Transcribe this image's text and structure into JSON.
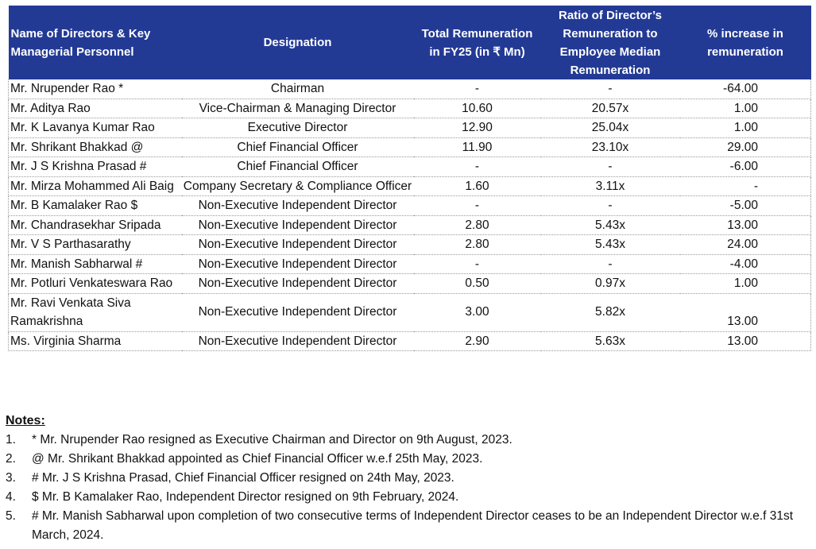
{
  "table": {
    "header_color": "#233a95",
    "headers": [
      "Name of Directors & Key Managerial Personnel",
      "Designation",
      "Total Remuneration in FY25 (in ₹ Mn)",
      "Ratio of Director’s Remuneration to Employee Median Remuneration",
      "% increase in remuneration"
    ],
    "rows": [
      {
        "name": "Mr. Nrupender Rao *",
        "designation": "Chairman",
        "total": "-",
        "ratio": "-",
        "pct": "-64.00"
      },
      {
        "name": "Mr. Aditya Rao",
        "designation": "Vice-Chairman & Managing Director",
        "total": "10.60",
        "ratio": "20.57x",
        "pct": "1.00"
      },
      {
        "name": "Mr. K Lavanya Kumar Rao",
        "designation": "Executive Director",
        "total": "12.90",
        "ratio": "25.04x",
        "pct": "1.00"
      },
      {
        "name": "Mr. Shrikant Bhakkad @",
        "designation": "Chief Financial Officer",
        "total": "11.90",
        "ratio": "23.10x",
        "pct": "29.00"
      },
      {
        "name": "Mr. J S Krishna Prasad #",
        "designation": "Chief Financial Officer",
        "total": "-",
        "ratio": "-",
        "pct": "-6.00"
      },
      {
        "name": "Mr. Mirza Mohammed Ali Baig",
        "designation": "Company Secretary & Compliance Officer",
        "total": "1.60",
        "ratio": "3.11x",
        "pct": "-"
      },
      {
        "name": "Mr. B Kamalaker Rao $",
        "designation": "Non-Executive Independent Director",
        "total": "-",
        "ratio": "-",
        "pct": "-5.00"
      },
      {
        "name": "Mr. Chandrasekhar Sripada",
        "designation": "Non-Executive Independent Director",
        "total": "2.80",
        "ratio": "5.43x",
        "pct": "13.00"
      },
      {
        "name": "Mr. V S Parthasarathy",
        "designation": "Non-Executive Independent Director",
        "total": "2.80",
        "ratio": "5.43x",
        "pct": "24.00"
      },
      {
        "name": "Mr. Manish Sabharwal #",
        "designation": "Non-Executive Independent Director",
        "total": "-",
        "ratio": "-",
        "pct": "-4.00"
      },
      {
        "name": "Mr. Potluri Venkateswara Rao",
        "designation": "Non-Executive Independent Director",
        "total": "0.50",
        "ratio": "0.97x",
        "pct": "1.00"
      },
      {
        "name": "Mr. Ravi Venkata Siva Ramakrishna",
        "designation": "Non-Executive Independent Director",
        "total": "3.00",
        "ratio": "5.82x",
        "pct": "13.00"
      },
      {
        "name": "Ms. Virginia Sharma",
        "designation": "Non-Executive Independent Director",
        "total": "2.90",
        "ratio": "5.63x",
        "pct": "13.00"
      }
    ]
  },
  "notes": {
    "title": "Notes:",
    "items": [
      {
        "num": "1.",
        "text": "* Mr. Nrupender Rao resigned as Executive Chairman and Director on 9th August, 2023."
      },
      {
        "num": "2.",
        "text": "@ Mr. Shrikant Bhakkad appointed as Chief Financial Officer w.e.f 25th May, 2023."
      },
      {
        "num": "3.",
        "text": "# Mr. J S Krishna Prasad, Chief Financial Officer resigned on 24th May, 2023."
      },
      {
        "num": "4.",
        "text": "$ Mr. B Kamalaker Rao, Independent Director resigned on 9th February, 2024."
      },
      {
        "num": "5.",
        "text": "# Mr. Manish Sabharwal upon completion of two consecutive terms of Independent Director ceases to be an Independent Director w.e.f 31st March, 2024."
      }
    ]
  }
}
